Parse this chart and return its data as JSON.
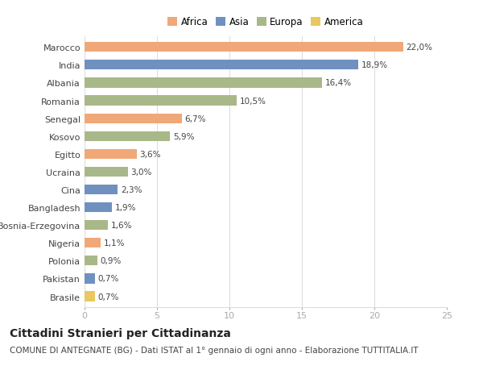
{
  "countries": [
    "Marocco",
    "India",
    "Albania",
    "Romania",
    "Senegal",
    "Kosovo",
    "Egitto",
    "Ucraina",
    "Cina",
    "Bangladesh",
    "Bosnia-Erzegovina",
    "Nigeria",
    "Polonia",
    "Pakistan",
    "Brasile"
  ],
  "values": [
    22.0,
    18.9,
    16.4,
    10.5,
    6.7,
    5.9,
    3.6,
    3.0,
    2.3,
    1.9,
    1.6,
    1.1,
    0.9,
    0.7,
    0.7
  ],
  "labels": [
    "22,0%",
    "18,9%",
    "16,4%",
    "10,5%",
    "6,7%",
    "5,9%",
    "3,6%",
    "3,0%",
    "2,3%",
    "1,9%",
    "1,6%",
    "1,1%",
    "0,9%",
    "0,7%",
    "0,7%"
  ],
  "continents": [
    "Africa",
    "Asia",
    "Europa",
    "Europa",
    "Africa",
    "Europa",
    "Africa",
    "Europa",
    "Asia",
    "Asia",
    "Europa",
    "Africa",
    "Europa",
    "Asia",
    "America"
  ],
  "colors": {
    "Africa": "#F0A878",
    "Asia": "#7090C0",
    "Europa": "#A8B888",
    "America": "#E8C860"
  },
  "legend_order": [
    "Africa",
    "Asia",
    "Europa",
    "America"
  ],
  "xlim": [
    0,
    25
  ],
  "xticks": [
    0,
    5,
    10,
    15,
    20,
    25
  ],
  "title": "Cittadini Stranieri per Cittadinanza",
  "subtitle": "COMUNE DI ANTEGNATE (BG) - Dati ISTAT al 1° gennaio di ogni anno - Elaborazione TUTTITALIA.IT",
  "background_color": "#ffffff",
  "bar_height": 0.55,
  "grid_color": "#dddddd",
  "text_color": "#444444",
  "title_fontsize": 10,
  "subtitle_fontsize": 7.5,
  "label_fontsize": 7.5,
  "tick_fontsize": 8,
  "legend_fontsize": 8.5
}
